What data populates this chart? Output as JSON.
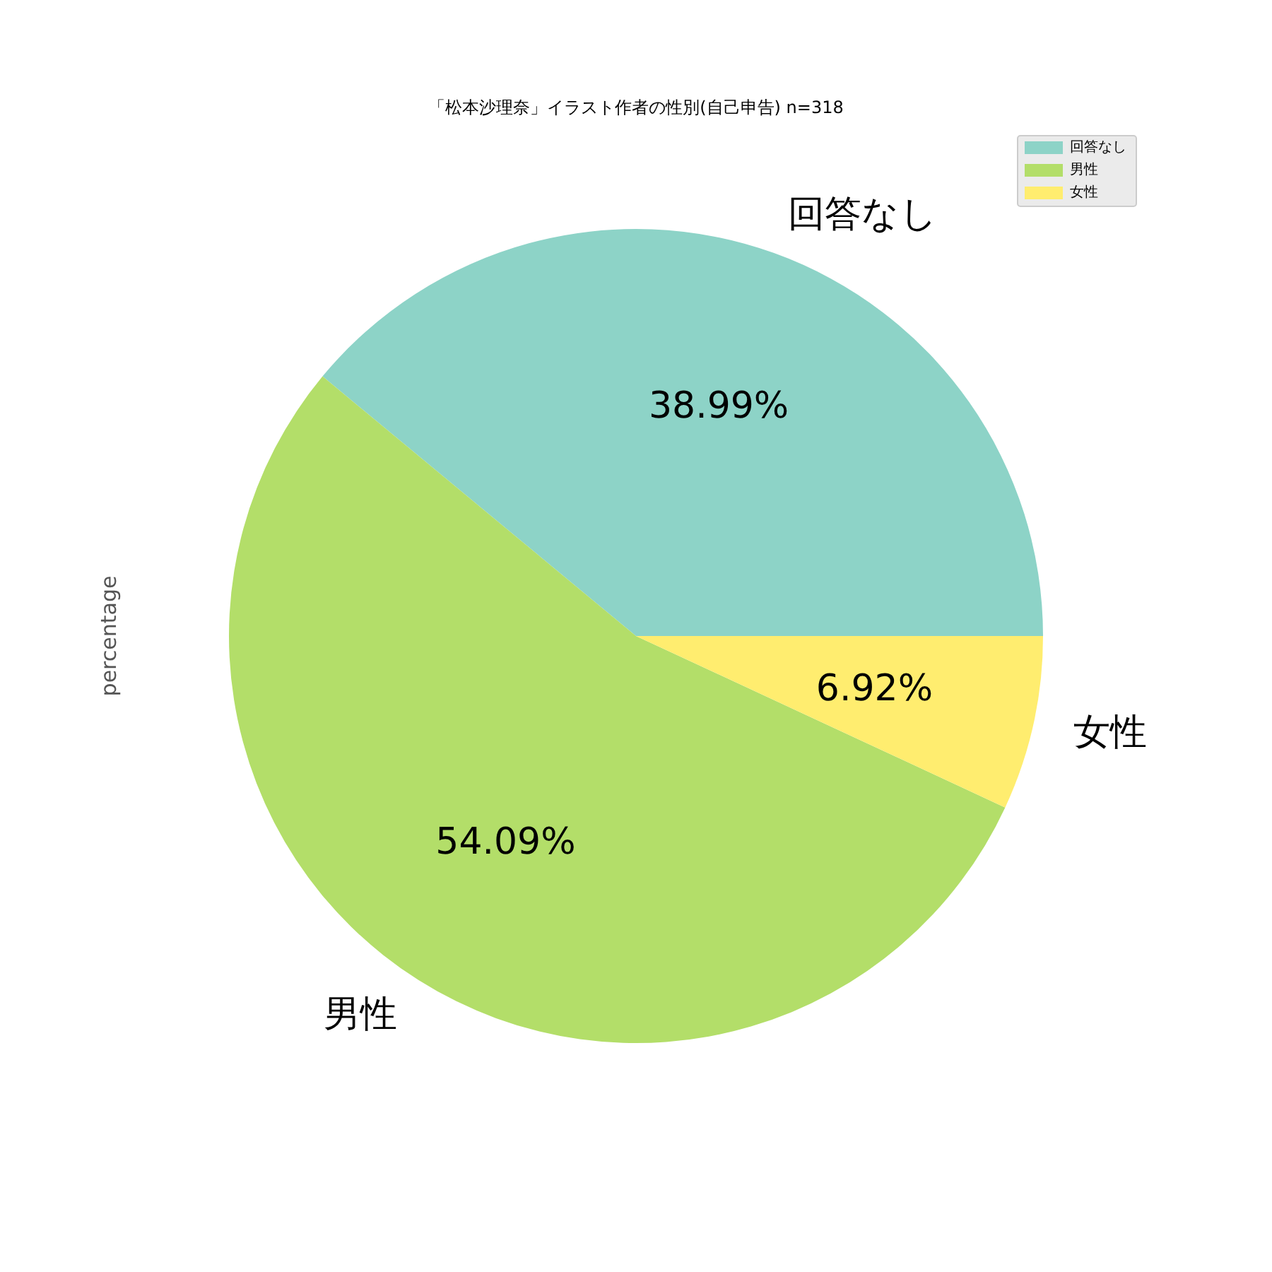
{
  "chart_data": {
    "type": "pie",
    "title": "「松本沙理奈」イラスト作者の性別(自己申告) n=318",
    "ylabel": "percentage",
    "categories": [
      "回答なし",
      "男性",
      "女性"
    ],
    "values": [
      38.99,
      54.09,
      6.92
    ],
    "colors": [
      "#8dd3c7",
      "#b3de69",
      "#ffed6f"
    ],
    "value_labels": [
      "38.99%",
      "54.09%",
      "6.92%"
    ],
    "legend": "top right"
  }
}
